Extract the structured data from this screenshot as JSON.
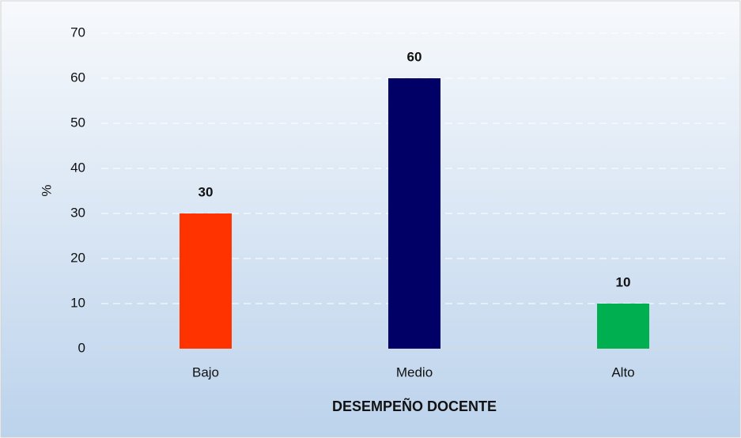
{
  "chart_data": {
    "type": "bar",
    "categories": [
      "Bajo",
      "Medio",
      "Alto"
    ],
    "values": [
      30,
      60,
      10
    ],
    "colors": [
      "#ff3300",
      "#000066",
      "#00b050"
    ],
    "y_label": "%",
    "x_label": "DESEMPEÑO DOCENTE",
    "ylim": [
      0,
      70
    ],
    "yticks": [
      0,
      10,
      20,
      30,
      40,
      50,
      60,
      70
    ],
    "grid": true
  }
}
